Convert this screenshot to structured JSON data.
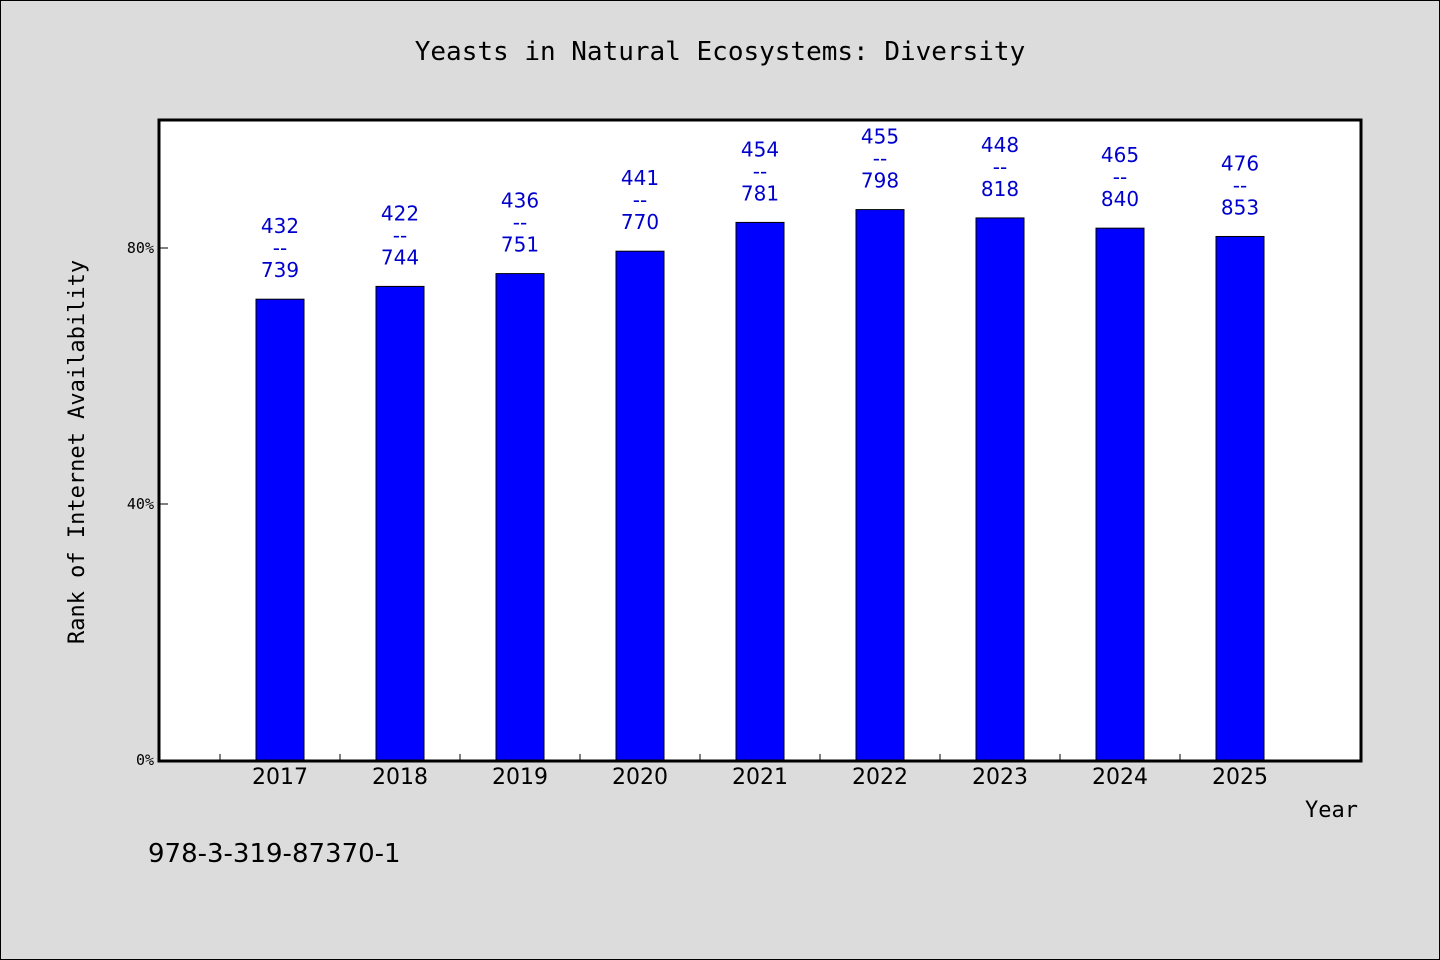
{
  "chart_data": {
    "type": "bar",
    "title": "Yeasts in Natural Ecosystems: Diversity",
    "xlabel": "Year",
    "ylabel": "Rank of Internet Availability",
    "categories": [
      "2017",
      "2018",
      "2019",
      "2020",
      "2021",
      "2022",
      "2023",
      "2024",
      "2025"
    ],
    "values": [
      0.72,
      0.74,
      0.76,
      0.795,
      0.84,
      0.86,
      0.847,
      0.831,
      0.818
    ],
    "label_top": [
      "432",
      "422",
      "436",
      "441",
      "454",
      "455",
      "448",
      "465",
      "476"
    ],
    "label_sep": "--",
    "label_bottom": [
      "739",
      "744",
      "751",
      "770",
      "781",
      "798",
      "818",
      "840",
      "853"
    ],
    "y_ticks": [
      0,
      0.4,
      0.8
    ],
    "y_tick_labels": [
      "0%",
      "40%",
      "80%"
    ],
    "ylim": [
      0,
      1.0
    ],
    "grid": false,
    "bar_color": "#0000ff",
    "label_color": "#0000cc"
  },
  "footer_text": "978-3-319-87370-1"
}
